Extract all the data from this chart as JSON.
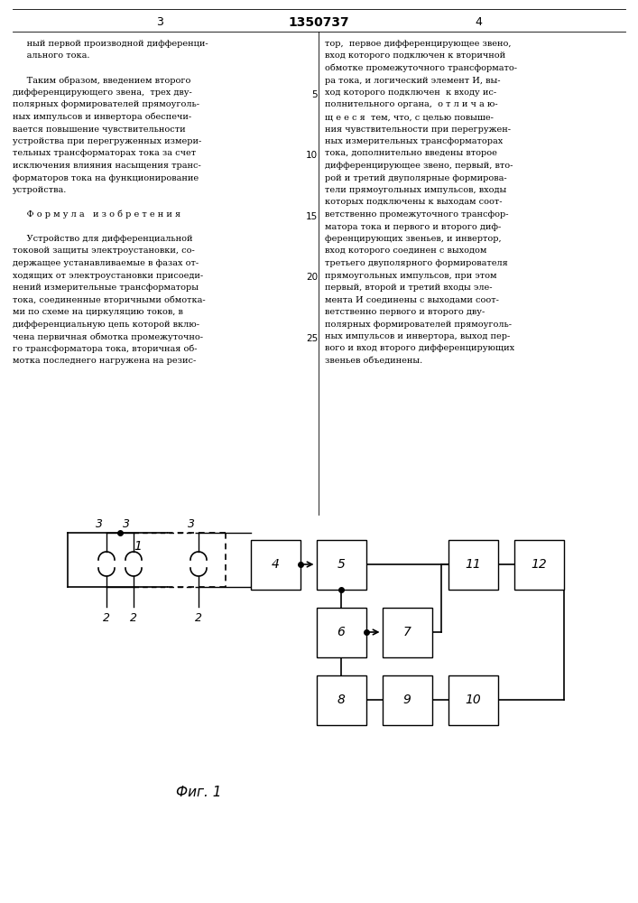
{
  "title": "1350737",
  "page_left": "3",
  "page_right": "4",
  "fig_label": "Фиг. 1",
  "background_color": "#ffffff",
  "text_color": "#000000",
  "line_color": "#000000",
  "left_lines": [
    "     ный первой производной дифференци-",
    "     ального тока.",
    "",
    "     Таким образом, введением второго",
    "дифференцирующего звена,  трех дву-",
    "полярных формирователей прямоуголь-",
    "ных импульсов и инвертора обеспечи-",
    "вается повышение чувствительности",
    "устройства при перегруженных измери-",
    "тельных трансформаторах тока за счет",
    "исключения влияния насыщения транс-",
    "форматоров тока на функционирование",
    "устройства.",
    "",
    "     Ф о р м у л а   и з о б р е т е н и я",
    "",
    "     Устройство для дифференциальной",
    "токовой защиты электроустановки, со-",
    "держащее устанавливаемые в фазах от-",
    "ходящих от электроустановки присоеди-",
    "нений измерительные трансформаторы",
    "тока, соединенные вторичными обмотка-",
    "ми по схеме на циркуляцию токов, в",
    "дифференциальную цепь которой вклю-",
    "чена первичная обмотка промежуточно-",
    "го трансформатора тока, вторичная об-",
    "мотка последнего нагружена на резис-"
  ],
  "right_lines": [
    "тор,  первое дифференцирующее звено,",
    "вход которого подключен к вторичной",
    "обмотке промежуточного трансформато-",
    "ра тока, и логический элемент И, вы-",
    "ход которого подключен  к входу ис-",
    "полнительного органа,  о т л и ч а ю-",
    "щ е е с я  тем, что, с целью повыше-",
    "ния чувствительности при перегружен-",
    "ных измерительных трансформаторах",
    "тока, дополнительно введены второе",
    "дифференцирующее звено, первый, вто-",
    "рой и третий двуполярные формирова-",
    "тели прямоугольных импульсов, входы",
    "которых подключены к выходам соот-",
    "ветственно промежуточного трансфор-",
    "матора тока и первого и второго диф-",
    "ференцирующих звеньев, и инвертор,",
    "вход которого соединен с выходом",
    "третьего двуполярного формирователя",
    "прямоугольных импульсов, при этом",
    "первый, второй и третий входы эле-",
    "мента И соединены с выходами соот-",
    "ветственно первого и второго дву-",
    "полярных формирователей прямоуголь-",
    "ных импульсов и инвертора, выход пер-",
    "вого и вход второго дифференцирующих",
    "звеньев объединены."
  ],
  "line_numbers": [
    5,
    10,
    15,
    20,
    25
  ]
}
